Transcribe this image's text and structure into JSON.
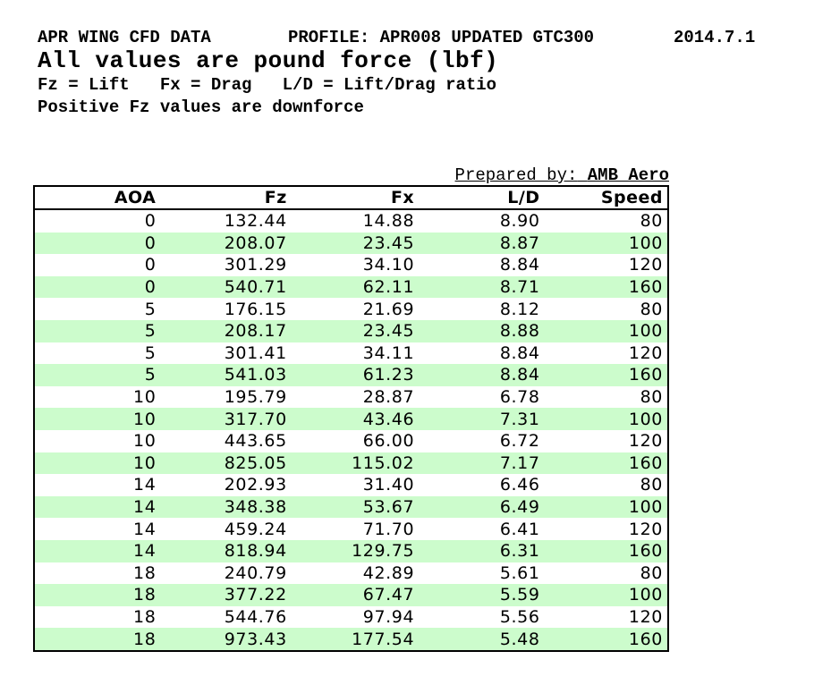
{
  "header": {
    "title": "APR WING CFD DATA",
    "profile": "PROFILE: APR008 UPDATED GTC300",
    "date": "2014.7.1",
    "subtitle": "All values are pound force (lbf)",
    "legend": "Fz = Lift   Fx = Drag   L/D = Lift/Drag ratio",
    "note": "Positive Fz values are downforce"
  },
  "prepared_by": {
    "label": "Prepared by:",
    "value": "AMB Aero"
  },
  "table": {
    "columns": [
      "AOA",
      "Fz",
      "Fx",
      "L/D",
      "Speed"
    ],
    "rows": [
      [
        "0",
        "132.44",
        "14.88",
        "8.90",
        "80"
      ],
      [
        "0",
        "208.07",
        "23.45",
        "8.87",
        "100"
      ],
      [
        "0",
        "301.29",
        "34.10",
        "8.84",
        "120"
      ],
      [
        "0",
        "540.71",
        "62.11",
        "8.71",
        "160"
      ],
      [
        "5",
        "176.15",
        "21.69",
        "8.12",
        "80"
      ],
      [
        "5",
        "208.17",
        "23.45",
        "8.88",
        "100"
      ],
      [
        "5",
        "301.41",
        "34.11",
        "8.84",
        "120"
      ],
      [
        "5",
        "541.03",
        "61.23",
        "8.84",
        "160"
      ],
      [
        "10",
        "195.79",
        "28.87",
        "6.78",
        "80"
      ],
      [
        "10",
        "317.70",
        "43.46",
        "7.31",
        "100"
      ],
      [
        "10",
        "443.65",
        "66.00",
        "6.72",
        "120"
      ],
      [
        "10",
        "825.05",
        "115.02",
        "7.17",
        "160"
      ],
      [
        "14",
        "202.93",
        "31.40",
        "6.46",
        "80"
      ],
      [
        "14",
        "348.38",
        "53.67",
        "6.49",
        "100"
      ],
      [
        "14",
        "459.24",
        "71.70",
        "6.41",
        "120"
      ],
      [
        "14",
        "818.94",
        "129.75",
        "6.31",
        "160"
      ],
      [
        "18",
        "240.79",
        "42.89",
        "5.61",
        "80"
      ],
      [
        "18",
        "377.22",
        "67.47",
        "5.59",
        "100"
      ],
      [
        "18",
        "544.76",
        "97.94",
        "5.56",
        "120"
      ],
      [
        "18",
        "973.43",
        "177.54",
        "5.48",
        "160"
      ]
    ]
  },
  "colors": {
    "row_alt_green": "#ccfccc",
    "border": "#000000",
    "text": "#000000",
    "background": "#ffffff"
  }
}
